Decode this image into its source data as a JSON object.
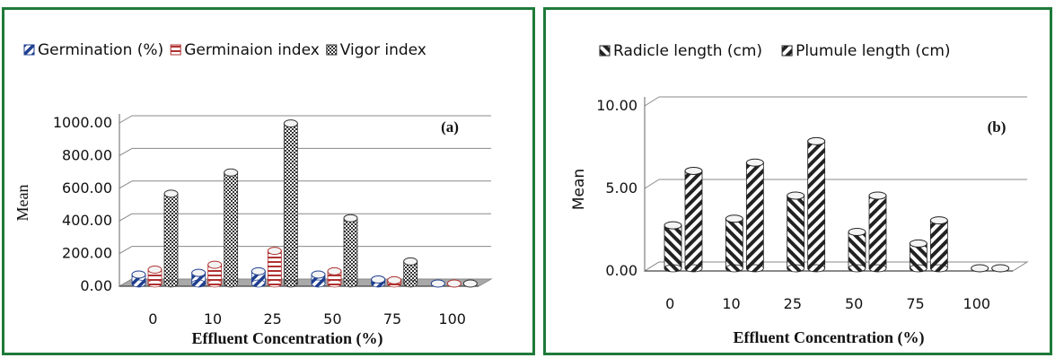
{
  "chart_data": [
    {
      "type": "bar",
      "panel_label": "(a)",
      "title": "",
      "xlabel": "Effluent Concentration (%)",
      "ylabel": "Mean",
      "ylim": [
        0,
        1000
      ],
      "yticks": [
        "0.00",
        "200.00",
        "400.00",
        "600.00",
        "800.00",
        "1000.00"
      ],
      "categories": [
        "0",
        "10",
        "25",
        "50",
        "75",
        "100"
      ],
      "legend_position": "top",
      "series": [
        {
          "name": "Germination (%)",
          "values": [
            55,
            65,
            75,
            55,
            25,
            0
          ],
          "color": "#1f3f8f",
          "pattern": "diag"
        },
        {
          "name": "Germinaion index",
          "values": [
            85,
            115,
            200,
            75,
            20,
            0
          ],
          "color": "#b03030",
          "pattern": "horiz"
        },
        {
          "name": "Vigor index",
          "values": [
            550,
            680,
            980,
            400,
            135,
            0
          ],
          "color": "#333333",
          "pattern": "check"
        }
      ]
    },
    {
      "type": "bar",
      "panel_label": "(b)",
      "title": "",
      "xlabel": "Effluent Concentration (%)",
      "ylabel": "Mean",
      "ylim": [
        0,
        10
      ],
      "yticks": [
        "0.00",
        "5.00",
        "10.00"
      ],
      "categories": [
        "0",
        "10",
        "25",
        "50",
        "75",
        "100"
      ],
      "legend_position": "top",
      "series": [
        {
          "name": "Radicle length (cm)",
          "values": [
            2.6,
            3.0,
            4.4,
            2.2,
            1.5,
            0
          ],
          "color": "#222222",
          "pattern": "stripeA"
        },
        {
          "name": "Plumule length (cm)",
          "values": [
            5.9,
            6.4,
            7.7,
            4.4,
            2.9,
            0
          ],
          "color": "#222222",
          "pattern": "stripeB"
        }
      ]
    }
  ]
}
